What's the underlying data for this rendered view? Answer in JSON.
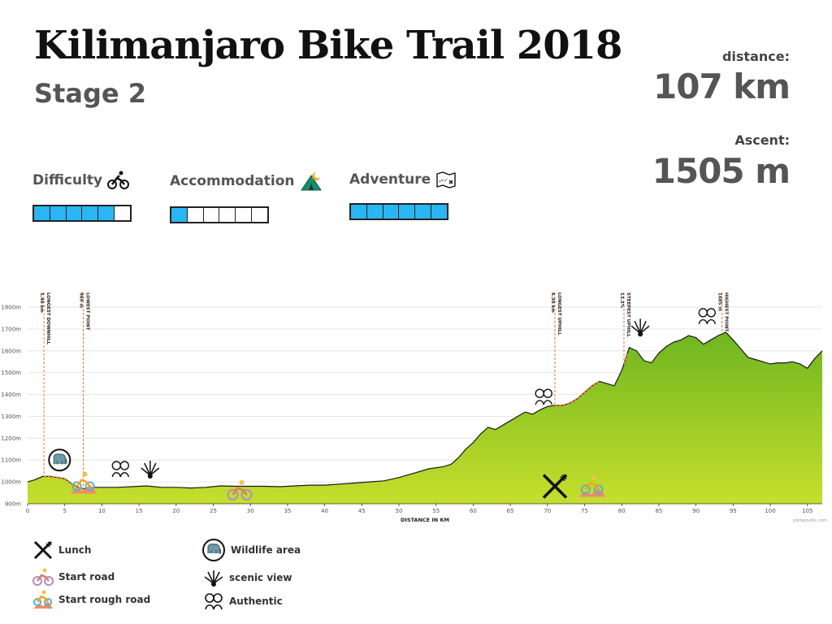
{
  "title": "Kilimanjaro Bike Trail 2018",
  "subtitle": "Stage 2",
  "stats": {
    "distance_label": "distance:",
    "distance_value": "107 km",
    "ascent_label": "Ascent:",
    "ascent_value": "1505 m"
  },
  "ratings": [
    {
      "label": "Difficulty",
      "icon": "cyclist-icon",
      "score": 5,
      "max": 6
    },
    {
      "label": "Accommodation",
      "icon": "tent-icon",
      "score": 1,
      "max": 6
    },
    {
      "label": "Adventure",
      "icon": "map-icon",
      "score": 6,
      "max": 6
    }
  ],
  "legend": [
    {
      "label": "Lunch",
      "icon": "fork-knife-icon"
    },
    {
      "label": "Start road",
      "icon": "road-cyclist-icon"
    },
    {
      "label": "Start rough road",
      "icon": "rough-road-cyclist-icon"
    },
    {
      "label": "Wildlife area",
      "icon": "elephant-icon"
    },
    {
      "label": "scenic view",
      "icon": "scenic-view-icon"
    },
    {
      "label": "Authentic",
      "icon": "people-icon"
    }
  ],
  "chart_data": {
    "type": "area",
    "xlabel": "DISTANCE IN KM",
    "ylabel": "",
    "xlim": [
      0,
      107
    ],
    "ylim": [
      900,
      1800
    ],
    "x_ticks": [
      0,
      5,
      10,
      15,
      20,
      25,
      30,
      35,
      40,
      45,
      50,
      55,
      60,
      65,
      70,
      75,
      80,
      85,
      90,
      95,
      100,
      105
    ],
    "y_ticks": [
      900,
      1000,
      1100,
      1200,
      1300,
      1400,
      1500,
      1600,
      1700,
      1800
    ],
    "y_tick_labels": [
      "900m",
      "1000m",
      "1100m",
      "1200m",
      "1300m",
      "1400m",
      "1500m",
      "1600m",
      "1700m",
      "1800m"
    ],
    "fill_colors": [
      "#c6df2c",
      "#6fb520"
    ],
    "grid": true,
    "credit": "plotaroute.com",
    "series": [
      {
        "x": [
          0,
          1,
          2,
          3,
          4,
          5,
          6,
          7,
          7.5,
          8,
          9,
          10,
          12,
          14,
          16,
          18,
          20,
          22,
          24,
          26,
          28,
          30,
          32,
          34,
          36,
          38,
          40,
          42,
          44,
          46,
          48,
          50,
          52,
          54,
          56,
          57,
          58,
          59,
          60,
          61,
          62,
          63,
          64,
          65,
          66,
          67,
          68,
          69,
          70,
          71,
          72,
          73,
          74,
          75,
          76,
          77,
          78,
          79,
          80,
          80.5,
          81,
          82,
          83,
          84,
          85,
          86,
          87,
          88,
          89,
          90,
          91,
          92,
          93,
          94,
          95,
          96,
          97,
          98,
          99,
          100,
          101,
          102,
          103,
          104,
          105,
          106,
          107
        ],
        "y": [
          1000,
          1010,
          1025,
          1025,
          1020,
          1015,
          990,
          972,
          969,
          970,
          975,
          975,
          975,
          978,
          982,
          975,
          975,
          972,
          975,
          982,
          980,
          980,
          980,
          978,
          982,
          985,
          985,
          990,
          995,
          1000,
          1005,
          1020,
          1040,
          1060,
          1070,
          1080,
          1110,
          1150,
          1180,
          1220,
          1250,
          1240,
          1260,
          1280,
          1300,
          1320,
          1310,
          1330,
          1345,
          1350,
          1350,
          1360,
          1380,
          1410,
          1440,
          1460,
          1450,
          1440,
          1510,
          1560,
          1615,
          1600,
          1555,
          1545,
          1590,
          1620,
          1640,
          1650,
          1670,
          1660,
          1630,
          1650,
          1670,
          1685,
          1650,
          1610,
          1570,
          1560,
          1550,
          1540,
          1545,
          1545,
          1550,
          1540,
          1520,
          1565,
          1600
        ]
      }
    ],
    "annotations": [
      {
        "x": 2.2,
        "label": "LONGEST DOWNHILL",
        "value": "5.40 km",
        "highlight_to": 7.5
      },
      {
        "x": 7.5,
        "label": "LOWEST POINT",
        "value": "969 m"
      },
      {
        "x": 71,
        "label": "LONGEST UPHILL",
        "value": "6.30 km",
        "highlight_to": 77
      },
      {
        "x": 80.3,
        "label": "STEEPEST UPHILL",
        "value": "13.3%",
        "highlight_to": 80.8
      },
      {
        "x": 93.5,
        "label": "HIGHEST POINT",
        "value": "1685 m"
      }
    ],
    "markers": [
      {
        "x": 4.3,
        "y": 1100,
        "icon": "elephant-icon"
      },
      {
        "x": 12.5,
        "y": 1060,
        "icon": "people-icon"
      },
      {
        "x": 16.5,
        "y": 1060,
        "icon": "scenic-view-icon"
      },
      {
        "x": 7.5,
        "y": 995,
        "icon": "rough-road-cyclist-icon"
      },
      {
        "x": 28.5,
        "y": 960,
        "icon": "road-cyclist-icon"
      },
      {
        "x": 71,
        "y": 980,
        "icon": "fork-knife-icon"
      },
      {
        "x": 76,
        "y": 980,
        "icon": "rough-road-cyclist-icon"
      },
      {
        "x": 69.5,
        "y": 1390,
        "icon": "people-icon"
      },
      {
        "x": 82.5,
        "y": 1710,
        "icon": "scenic-view-icon"
      },
      {
        "x": 91.5,
        "y": 1760,
        "icon": "people-icon"
      }
    ]
  }
}
